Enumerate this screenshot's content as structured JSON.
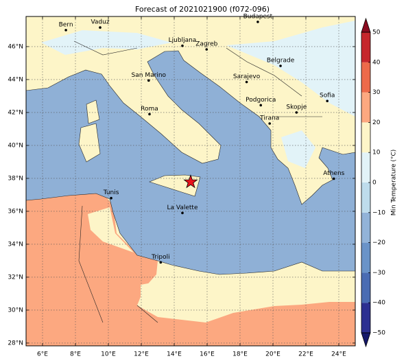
{
  "chart_data": {
    "type": "map",
    "title": "Forecast of 2021021900 (f072-096)",
    "xlim": [
      5,
      25
    ],
    "ylim": [
      27.83,
      47.83
    ],
    "xticks": [
      {
        "value": 6,
        "label": "6°E"
      },
      {
        "value": 8,
        "label": "8°E"
      },
      {
        "value": 10,
        "label": "10°E"
      },
      {
        "value": 12,
        "label": "12°E"
      },
      {
        "value": 14,
        "label": "14°E"
      },
      {
        "value": 16,
        "label": "16°E"
      },
      {
        "value": 18,
        "label": "18°E"
      },
      {
        "value": 20,
        "label": "20°E"
      },
      {
        "value": 22,
        "label": "22°E"
      },
      {
        "value": 24,
        "label": "24°E"
      }
    ],
    "yticks": [
      {
        "value": 28,
        "label": "28°N"
      },
      {
        "value": 30,
        "label": "30°N"
      },
      {
        "value": 32,
        "label": "32°N"
      },
      {
        "value": 34,
        "label": "34°N"
      },
      {
        "value": 36,
        "label": "36°N"
      },
      {
        "value": 38,
        "label": "38°N"
      },
      {
        "value": 40,
        "label": "40°N"
      },
      {
        "value": 42,
        "label": "42°N"
      },
      {
        "value": 44,
        "label": "44°N"
      },
      {
        "value": 46,
        "label": "46°N"
      }
    ],
    "grid": true,
    "cities": [
      {
        "name": "Bern",
        "lon": 7.42,
        "lat": 47.0
      },
      {
        "name": "Vaduz",
        "lon": 9.5,
        "lat": 47.16
      },
      {
        "name": "Budapest",
        "lon": 19.08,
        "lat": 47.5
      },
      {
        "name": "Ljubljana",
        "lon": 14.5,
        "lat": 46.05
      },
      {
        "name": "Zagreb",
        "lon": 15.97,
        "lat": 45.83
      },
      {
        "name": "Belgrade",
        "lon": 20.46,
        "lat": 44.83
      },
      {
        "name": "San Marino",
        "lon": 12.45,
        "lat": 43.94
      },
      {
        "name": "Sarajevo",
        "lon": 18.4,
        "lat": 43.85
      },
      {
        "name": "Sofia",
        "lon": 23.3,
        "lat": 42.7
      },
      {
        "name": "Podgorica",
        "lon": 19.26,
        "lat": 42.44
      },
      {
        "name": "Skopje",
        "lon": 21.43,
        "lat": 42.0
      },
      {
        "name": "Roma",
        "lon": 12.5,
        "lat": 41.9
      },
      {
        "name": "Tirana",
        "lon": 19.8,
        "lat": 41.33
      },
      {
        "name": "Athens",
        "lon": 23.7,
        "lat": 37.98
      },
      {
        "name": "Tunis",
        "lon": 10.17,
        "lat": 36.8
      },
      {
        "name": "La Valette",
        "lon": 14.5,
        "lat": 35.9
      },
      {
        "name": "Tripoli",
        "lon": 13.18,
        "lat": 32.9
      }
    ],
    "marker": {
      "lon": 15.0,
      "lat": 37.78,
      "color": "#e8141c"
    },
    "colorbar": {
      "label": "Min Temperature (°C)",
      "lim": [
        -50,
        50
      ],
      "ticks": [
        {
          "value": -50,
          "label": "−50"
        },
        {
          "value": -40,
          "label": "−40"
        },
        {
          "value": -30,
          "label": "−30"
        },
        {
          "value": -20,
          "label": "−20"
        },
        {
          "value": -10,
          "label": "−10"
        },
        0,
        10,
        20,
        30,
        40,
        50
      ],
      "colors": [
        "#2c2f91",
        "#4a6cb3",
        "#6a93c8",
        "#92b3d8",
        "#bedcec",
        "#e2f3f8",
        "#fdf5c8",
        "#fca880",
        "#ed6a4a",
        "#c6262c"
      ],
      "extend_colors": [
        "#15186a",
        "#8a0b1f"
      ]
    }
  }
}
